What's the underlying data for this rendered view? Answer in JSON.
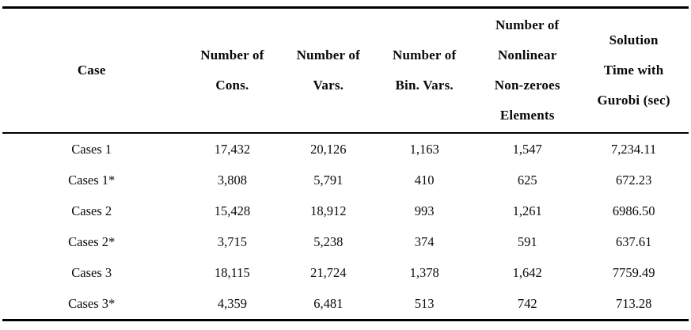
{
  "table": {
    "columns": [
      {
        "id": "case",
        "lines": [
          "Case"
        ]
      },
      {
        "id": "num-cons",
        "lines": [
          "Number of",
          "Cons."
        ]
      },
      {
        "id": "num-vars",
        "lines": [
          "Number of",
          "Vars."
        ]
      },
      {
        "id": "num-bin-vars",
        "lines": [
          "Number of",
          "Bin. Vars."
        ]
      },
      {
        "id": "num-nonlinear",
        "lines": [
          "Number of",
          "Nonlinear",
          "Non-zeroes",
          "Elements"
        ]
      },
      {
        "id": "solution-time",
        "lines": [
          "Solution",
          "Time with",
          "Gurobi (sec)"
        ]
      }
    ],
    "rows": [
      {
        "case": "Cases 1",
        "num_cons": "17,432",
        "num_vars": "20,126",
        "num_bin_vars": "1,163",
        "num_nonlinear": "1,547",
        "solution_time": "7,234.11"
      },
      {
        "case": "Cases 1*",
        "num_cons": "3,808",
        "num_vars": "5,791",
        "num_bin_vars": "410",
        "num_nonlinear": "625",
        "solution_time": "672.23"
      },
      {
        "case": "Cases 2",
        "num_cons": "15,428",
        "num_vars": "18,912",
        "num_bin_vars": "993",
        "num_nonlinear": "1,261",
        "solution_time": "6986.50"
      },
      {
        "case": "Cases 2*",
        "num_cons": "3,715",
        "num_vars": "5,238",
        "num_bin_vars": "374",
        "num_nonlinear": "591",
        "solution_time": "637.61"
      },
      {
        "case": "Cases 3",
        "num_cons": "18,115",
        "num_vars": "21,724",
        "num_bin_vars": "1,378",
        "num_nonlinear": "1,642",
        "solution_time": "7759.49"
      },
      {
        "case": "Cases 3*",
        "num_cons": "4,359",
        "num_vars": "6,481",
        "num_bin_vars": "513",
        "num_nonlinear": "742",
        "solution_time": "713.28"
      }
    ],
    "colors": {
      "rule": "#000000",
      "text": "#0a0a0a",
      "background": "#ffffff"
    }
  }
}
